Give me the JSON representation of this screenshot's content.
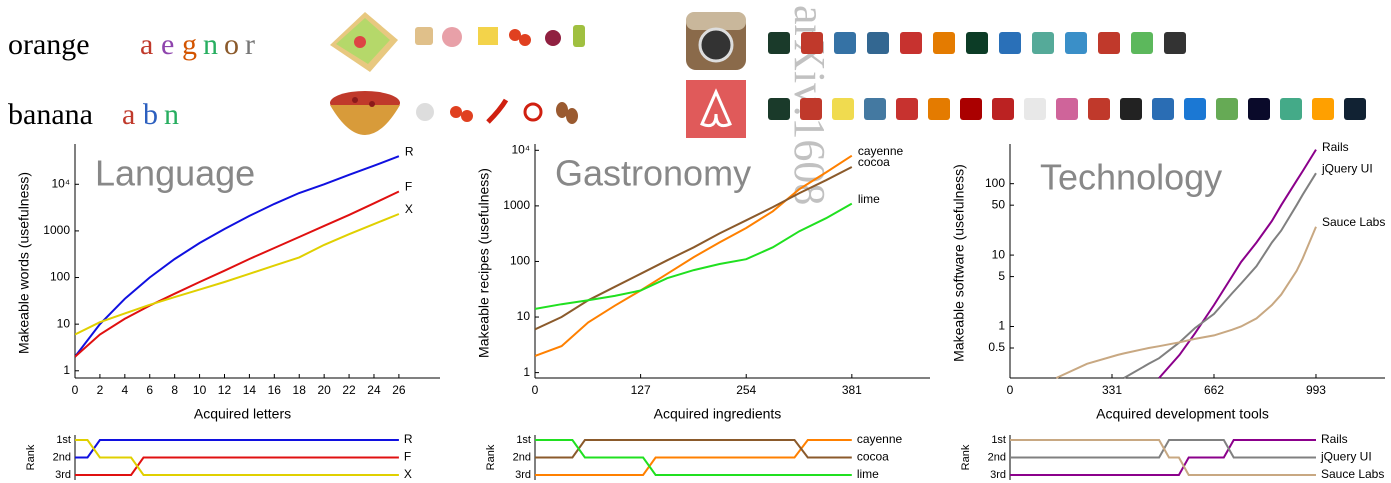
{
  "watermark": "arXiv:1608",
  "words": [
    {
      "word": "orange",
      "letters": [
        "a",
        "e",
        "g",
        "n",
        "o",
        "r"
      ],
      "letter_colors": [
        "#c0392b",
        "#8e44ad",
        "#d35400",
        "#27ae60",
        "#8b5a2b",
        "#777777"
      ]
    },
    {
      "word": "banana",
      "letters": [
        "a",
        "b",
        "n"
      ],
      "letter_colors": [
        "#c0392b",
        "#2c5fbf",
        "#27ae60"
      ]
    }
  ],
  "chart_data": [
    {
      "type": "line",
      "title": "Language",
      "log_y": true,
      "grid": false,
      "x_label": "Acquired letters",
      "y_label": "Makeable words (usefulness)",
      "x": [
        0,
        2,
        4,
        6,
        8,
        10,
        12,
        14,
        16,
        18,
        20,
        22,
        24,
        26
      ],
      "xlim": [
        0,
        29.3
      ],
      "xticks": [
        0,
        2,
        4,
        6,
        8,
        10,
        12,
        14,
        16,
        18,
        20,
        22,
        24,
        26
      ],
      "ylim": [
        0.7,
        60000
      ],
      "yticks": [
        1,
        10,
        100,
        1000,
        {
          "value": 10000,
          "label": "10⁴"
        }
      ],
      "series": [
        {
          "name": "R",
          "color": "#1010e0",
          "values": [
            2,
            10,
            35,
            100,
            250,
            550,
            1100,
            2100,
            3800,
            6500,
            10000,
            16000,
            25000,
            40000
          ]
        },
        {
          "name": "F",
          "color": "#e01010",
          "values": [
            2,
            6,
            13,
            25,
            45,
            80,
            140,
            250,
            430,
            740,
            1280,
            2200,
            3900,
            7000
          ]
        },
        {
          "name": "X",
          "color": "#e0d000",
          "values": [
            6,
            11,
            17,
            26,
            38,
            55,
            80,
            120,
            180,
            270,
            500,
            850,
            1400,
            2300
          ]
        }
      ]
    },
    {
      "type": "line",
      "title": "Gastronomy",
      "log_y": true,
      "grid": false,
      "x_label": "Acquired ingredients",
      "y_label": "Makeable recipes (usefulness)",
      "x": [
        0,
        32,
        64,
        96,
        127,
        159,
        191,
        222,
        254,
        286,
        318,
        350,
        381
      ],
      "xlim": [
        0,
        475
      ],
      "xticks": [
        0,
        127,
        254,
        381
      ],
      "ylim": [
        0.8,
        11000
      ],
      "yticks": [
        1,
        10,
        100,
        1000,
        {
          "value": 10000,
          "label": "10⁴"
        }
      ],
      "series": [
        {
          "name": "cayenne",
          "color": "#ff8000",
          "values": [
            2,
            3,
            8,
            16,
            30,
            60,
            120,
            220,
            400,
            800,
            2000,
            4000,
            8000
          ]
        },
        {
          "name": "cocoa",
          "color": "#8b5a2b",
          "values": [
            6,
            10,
            20,
            35,
            60,
            105,
            180,
            320,
            550,
            950,
            1700,
            2900,
            5000
          ]
        },
        {
          "name": "lime",
          "color": "#20e020",
          "values": [
            14,
            17,
            20,
            24,
            30,
            50,
            70,
            90,
            110,
            180,
            350,
            600,
            1100
          ]
        }
      ]
    },
    {
      "type": "line",
      "title": "Technology",
      "log_y": true,
      "grid": false,
      "x_label": "Acquired development tools",
      "y_label": "Makeable software (usefulness)",
      "x": [
        150,
        250,
        350,
        370,
        450,
        484,
        550,
        600,
        662,
        720,
        750,
        800,
        850,
        880,
        930,
        950,
        993
      ],
      "xlim": [
        0,
        1217
      ],
      "xticks": [
        0,
        331,
        662,
        993
      ],
      "ylim": [
        0.19,
        316
      ],
      "yticks": [
        0.5,
        1,
        5,
        10,
        50,
        100
      ],
      "series": [
        {
          "name": "Rails",
          "color": "#8b008b",
          "values": [
            null,
            null,
            null,
            null,
            null,
            0.19,
            0.4,
            0.8,
            2,
            5,
            8,
            15,
            30,
            50,
            110,
            150,
            300
          ]
        },
        {
          "name": "jQuery UI",
          "color": "#808080",
          "values": [
            null,
            null,
            null,
            0.19,
            0.3,
            0.36,
            0.6,
            0.95,
            1.5,
            2.9,
            4,
            7,
            15,
            22,
            50,
            70,
            140
          ]
        },
        {
          "name": "Sauce Labs",
          "color": "#c8a882",
          "values": [
            0.19,
            0.3,
            0.4,
            0.42,
            0.5,
            0.53,
            0.6,
            0.67,
            0.75,
            0.9,
            1,
            1.3,
            2,
            2.8,
            6,
            9,
            25
          ]
        }
      ]
    },
    {
      "type": "rank",
      "y_label": "Rank",
      "xlim": [
        0,
        29.3
      ],
      "ylim": [
        1,
        3
      ],
      "yticks": [
        {
          "value": 1,
          "label": "1st"
        },
        {
          "value": 2,
          "label": "2nd"
        },
        {
          "value": 3,
          "label": "3rd"
        }
      ],
      "x": [
        0,
        1,
        2,
        4.5,
        5.5,
        26
      ],
      "series": [
        {
          "name": "R",
          "color": "#1010e0",
          "values": [
            2,
            2,
            1,
            1,
            1,
            1
          ]
        },
        {
          "name": "F",
          "color": "#e01010",
          "values": [
            3,
            3,
            3,
            3,
            2,
            2
          ]
        },
        {
          "name": "X",
          "color": "#e0d000",
          "values": [
            1,
            1,
            2,
            2,
            3,
            3
          ]
        }
      ]
    },
    {
      "type": "rank",
      "y_label": "Rank",
      "xlim": [
        0,
        475
      ],
      "ylim": [
        1,
        3
      ],
      "yticks": [
        {
          "value": 1,
          "label": "1st"
        },
        {
          "value": 2,
          "label": "2nd"
        },
        {
          "value": 3,
          "label": "3rd"
        }
      ],
      "x": [
        0,
        45,
        60,
        130,
        145,
        312,
        328,
        381
      ],
      "series": [
        {
          "name": "cayenne",
          "color": "#ff8000",
          "values": [
            3,
            3,
            3,
            3,
            2,
            2,
            1,
            1
          ]
        },
        {
          "name": "cocoa",
          "color": "#8b5a2b",
          "values": [
            2,
            2,
            1,
            1,
            1,
            1,
            2,
            2
          ]
        },
        {
          "name": "lime",
          "color": "#20e020",
          "values": [
            1,
            1,
            2,
            2,
            3,
            3,
            3,
            3
          ]
        }
      ]
    },
    {
      "type": "rank",
      "y_label": "Rank",
      "xlim": [
        0,
        1217
      ],
      "ylim": [
        1,
        3
      ],
      "yticks": [
        {
          "value": 1,
          "label": "1st"
        },
        {
          "value": 2,
          "label": "2nd"
        },
        {
          "value": 3,
          "label": "3rd"
        }
      ],
      "x": [
        0,
        484,
        516,
        548,
        580,
        694,
        726,
        993
      ],
      "series": [
        {
          "name": "Rails",
          "color": "#8b008b",
          "values": [
            3,
            3,
            3,
            3,
            2,
            2,
            1,
            1
          ]
        },
        {
          "name": "jQuery UI",
          "color": "#808080",
          "values": [
            2,
            2,
            1,
            1,
            1,
            1,
            2,
            2
          ]
        },
        {
          "name": "Sauce Labs",
          "color": "#c8a882",
          "values": [
            1,
            1,
            2,
            2,
            3,
            3,
            3,
            3
          ]
        }
      ]
    }
  ]
}
